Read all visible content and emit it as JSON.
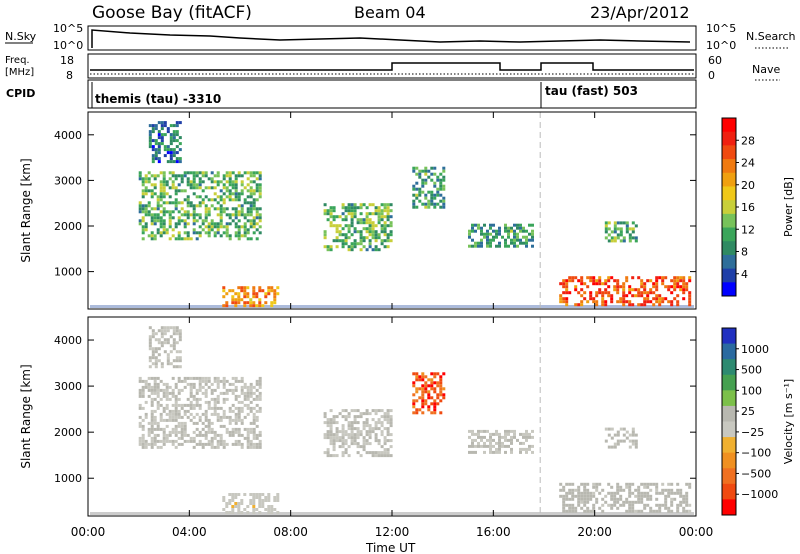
{
  "header": {
    "title": "Goose Bay (fitACF)",
    "beam": "Beam 04",
    "date": "23/Apr/2012"
  },
  "panels": {
    "nsky": {
      "left_label": "N.Sky",
      "right_label": "N.Search",
      "left_ticks": [
        "10^5",
        "10^0"
      ],
      "right_ticks": [
        "10^5",
        "10^0"
      ]
    },
    "freq": {
      "left_label_1": "Freq.",
      "left_label_2": "[MHz]",
      "right_label": "Nave",
      "left_ticks": [
        "18",
        "8"
      ],
      "right_ticks": [
        "60",
        "0"
      ]
    },
    "cpid": {
      "label": "CPID",
      "mode1": "themis (tau) -3310",
      "mode2": "tau (fast) 503"
    }
  },
  "colorbars": {
    "power": {
      "label": "Power [dB]",
      "ticks": [
        "28",
        "24",
        "20",
        "16",
        "12",
        "8",
        "4"
      ],
      "colors": [
        "#0000ff",
        "#1f3fa8",
        "#2e6e9a",
        "#2f8a62",
        "#3aa55a",
        "#77c25a",
        "#c8cf3a",
        "#f0c818",
        "#f0a010",
        "#f07a10",
        "#f04a10",
        "#f02010",
        "#ff0000"
      ]
    },
    "velocity": {
      "label": "Velocity [m s⁻¹]",
      "ticks": [
        "1000",
        "500",
        "100",
        "25",
        "−25",
        "−100",
        "−500",
        "−1000"
      ],
      "colors": [
        "#2030c0",
        "#2a6aa0",
        "#2d8a70",
        "#45a050",
        "#7cc04a",
        "#b8b8b0",
        "#c8c8c0",
        "#f0b030",
        "#f09020",
        "#f07020",
        "#f04a10",
        "#ff0000"
      ]
    }
  },
  "x_axis": {
    "label": "Time UT",
    "ticks": [
      "00:00",
      "04:00",
      "08:00",
      "12:00",
      "16:00",
      "20:00",
      "00:00"
    ]
  },
  "chart_data": [
    {
      "type": "heatmap",
      "title": "",
      "quantity": "Power [dB]",
      "xlabel": "Time UT",
      "ylabel": "Slant Range [km]",
      "xlim": [
        0,
        24
      ],
      "ylim": [
        180,
        4500
      ],
      "yticks": [
        1000,
        2000,
        3000,
        4000
      ],
      "crange": [
        0,
        32
      ],
      "regions": [
        {
          "t0": 5.3,
          "t1": 7.5,
          "r0": 280,
          "r1": 680,
          "level": 22
        },
        {
          "t0": 18.6,
          "t1": 23.8,
          "r0": 280,
          "r1": 900,
          "level": 26
        },
        {
          "t0": 2.0,
          "t1": 6.8,
          "r0": 1700,
          "r1": 3200,
          "level": 12
        },
        {
          "t0": 9.3,
          "t1": 12.0,
          "r0": 1500,
          "r1": 2500,
          "level": 12
        },
        {
          "t0": 15.0,
          "t1": 17.6,
          "r0": 1550,
          "r1": 2050,
          "level": 10
        },
        {
          "t0": 2.4,
          "t1": 3.6,
          "r0": 3400,
          "r1": 4300,
          "level": 7
        },
        {
          "t0": 12.8,
          "t1": 14.0,
          "r0": 2400,
          "r1": 3300,
          "level": 10
        },
        {
          "t0": 20.4,
          "t1": 21.6,
          "r0": 1650,
          "r1": 2100,
          "level": 11
        }
      ]
    },
    {
      "type": "heatmap",
      "title": "",
      "quantity": "Velocity [m s⁻¹]",
      "xlabel": "Time UT",
      "ylabel": "Slant Range [km]",
      "xlim": [
        0,
        24
      ],
      "ylim": [
        180,
        4500
      ],
      "yticks": [
        1000,
        2000,
        3000,
        4000
      ],
      "crange": [
        -1000,
        1000
      ],
      "regions": [
        {
          "t0": 5.3,
          "t1": 7.5,
          "r0": 280,
          "r1": 680,
          "level": -100
        },
        {
          "t0": 18.6,
          "t1": 23.8,
          "r0": 280,
          "r1": 900,
          "level": 60
        },
        {
          "t0": 2.0,
          "t1": 6.8,
          "r0": 1700,
          "r1": 3200,
          "level": 0
        },
        {
          "t0": 9.3,
          "t1": 12.0,
          "r0": 1500,
          "r1": 2500,
          "level": 0
        },
        {
          "t0": 15.0,
          "t1": 17.6,
          "r0": 1550,
          "r1": 2050,
          "level": 0
        },
        {
          "t0": 2.4,
          "t1": 3.6,
          "r0": 3400,
          "r1": 4300,
          "level": 0
        },
        {
          "t0": 12.8,
          "t1": 14.0,
          "r0": 2400,
          "r1": 3300,
          "level": -700
        },
        {
          "t0": 20.4,
          "t1": 21.6,
          "r0": 1650,
          "r1": 2100,
          "level": 30
        }
      ]
    }
  ]
}
